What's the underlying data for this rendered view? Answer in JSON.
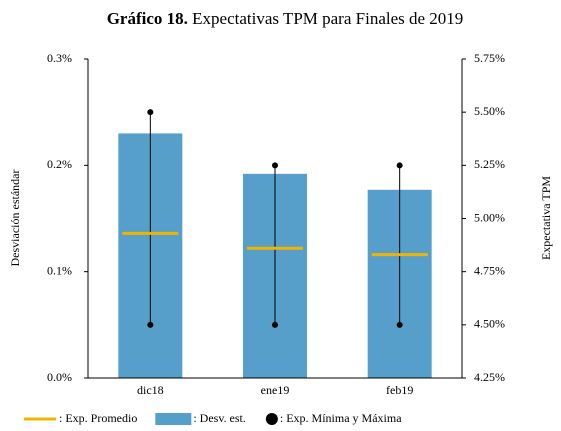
{
  "chart_data": {
    "type": "bar",
    "title_prefix": "Gráfico 18.",
    "title": "Expectativas TPM para Finales de 2019",
    "ylabel": "Desviación estándar",
    "y2label": "Expectativa TPM",
    "categories": [
      "dic18",
      "ene19",
      "feb19"
    ],
    "ylim": [
      0,
      0.3
    ],
    "yticks": [
      {
        "value": 0,
        "label": "0.0%"
      },
      {
        "value": 0.1,
        "label": "0.1%"
      },
      {
        "value": 0.2,
        "label": "0.2%"
      },
      {
        "value": 0.3,
        "label": "0.3%"
      }
    ],
    "y2lim": [
      4.25,
      5.75
    ],
    "y2ticks": [
      {
        "value": 4.25,
        "label": "4.25%"
      },
      {
        "value": 4.5,
        "label": "4.50%"
      },
      {
        "value": 4.75,
        "label": "4.75%"
      },
      {
        "value": 5.0,
        "label": "5.00%"
      },
      {
        "value": 5.25,
        "label": "5.25%"
      },
      {
        "value": 5.5,
        "label": "5.50%"
      },
      {
        "value": 5.75,
        "label": "5.75%"
      }
    ],
    "series": [
      {
        "name": ": Exp. Promedio",
        "color": "#f0b400",
        "axis": "y2",
        "values": [
          4.93,
          4.86,
          4.83
        ]
      },
      {
        "name": ": Desv. est.",
        "color": "#569fcb",
        "values": [
          0.23,
          0.192,
          0.177
        ]
      },
      {
        "name": ": Exp. Mínima y Máxima",
        "color": "#000000",
        "axis": "y2",
        "min": [
          4.5,
          4.5,
          4.5
        ],
        "max": [
          5.5,
          5.25,
          5.25
        ]
      }
    ]
  }
}
